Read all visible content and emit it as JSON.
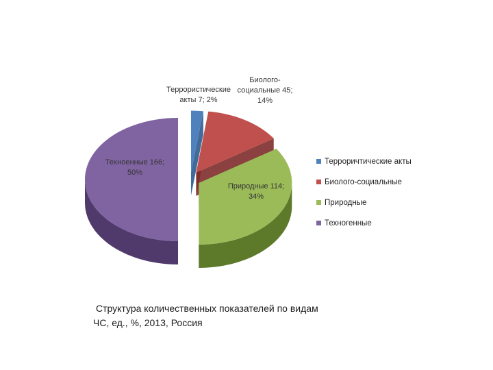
{
  "chart_data": {
    "type": "pie",
    "slices": [
      {
        "name": "Террористические акты",
        "value": 7,
        "percent": 2,
        "label_lines": [
          "Террористические",
          "акты 7; 2%"
        ],
        "color": "#4f81bd",
        "side": "#2f5b8f",
        "exploded": true
      },
      {
        "name": "Биолого-социальные",
        "value": 45,
        "percent": 14,
        "label_lines": [
          "Биолого-",
          "социальные 45;",
          "14%"
        ],
        "color": "#c0504d",
        "side": "#7e2c2a",
        "exploded": true
      },
      {
        "name": "Природные",
        "value": 114,
        "percent": 34,
        "label_lines": [
          "Природные 114;",
          "34%"
        ],
        "color": "#9bbb59",
        "side": "#5d7a2b",
        "exploded": true
      },
      {
        "name": "Техногенные",
        "value": 166,
        "percent": 50,
        "label_lines": [
          "Техноенные 166;",
          "50%"
        ],
        "color": "#8064a2",
        "side": "#4f3a6b",
        "exploded": true
      }
    ],
    "legend": {
      "placement": "right",
      "entries": [
        "Терроричтические акты",
        "Биолого-социальные",
        "Природные",
        "Техногенные"
      ]
    }
  },
  "caption": {
    "line1": "Структура количественных показателей по видам",
    "line2": "ЧС, ед., %, 2013, Россия"
  }
}
